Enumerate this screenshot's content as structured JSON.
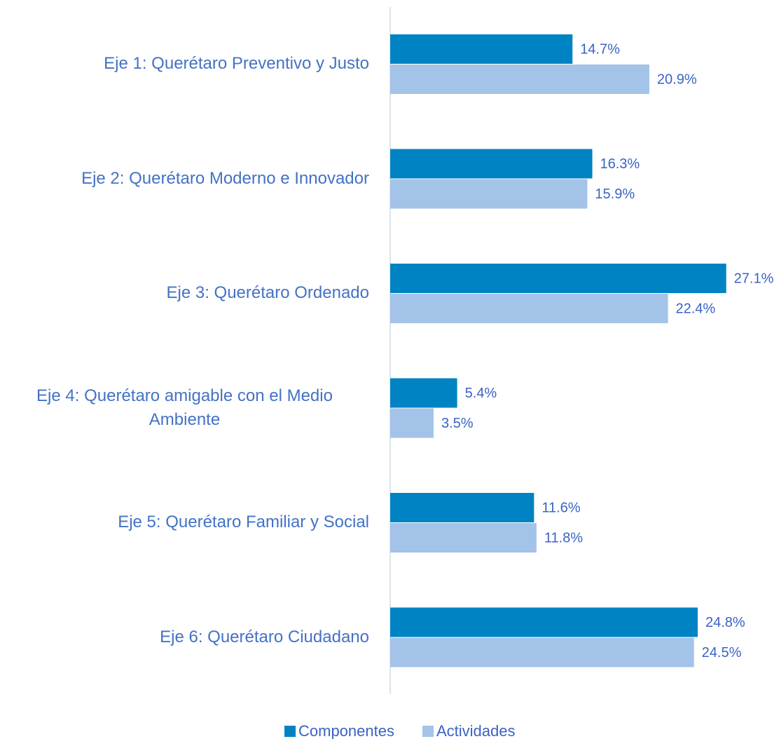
{
  "chart_data": {
    "type": "bar",
    "orientation": "horizontal",
    "categories": [
      "Eje 1: Querétaro Preventivo y Justo",
      "Eje 2: Querétaro Moderno e Innovador",
      "Eje 3: Querétaro Ordenado",
      "Eje 4: Querétaro amigable con el Medio Ambiente",
      "Eje 5: Querétaro Familiar y Social",
      "Eje 6: Querétaro Ciudadano"
    ],
    "series": [
      {
        "name": "Componentes",
        "color": "#0083c3",
        "values": [
          14.7,
          16.3,
          27.1,
          5.4,
          11.6,
          24.8
        ],
        "value_labels": [
          "14.7%",
          "16.3%",
          "27.1%",
          "5.4%",
          "11.6%",
          "24.8%"
        ]
      },
      {
        "name": "Actividades",
        "color": "#a3c3e9",
        "values": [
          20.9,
          15.9,
          22.4,
          3.5,
          11.8,
          24.5
        ],
        "value_labels": [
          "20.9%",
          "15.9%",
          "22.4%",
          "3.5%",
          "11.8%",
          "24.5%"
        ]
      }
    ],
    "xlim": [
      0,
      30
    ],
    "legend": "bottom"
  }
}
